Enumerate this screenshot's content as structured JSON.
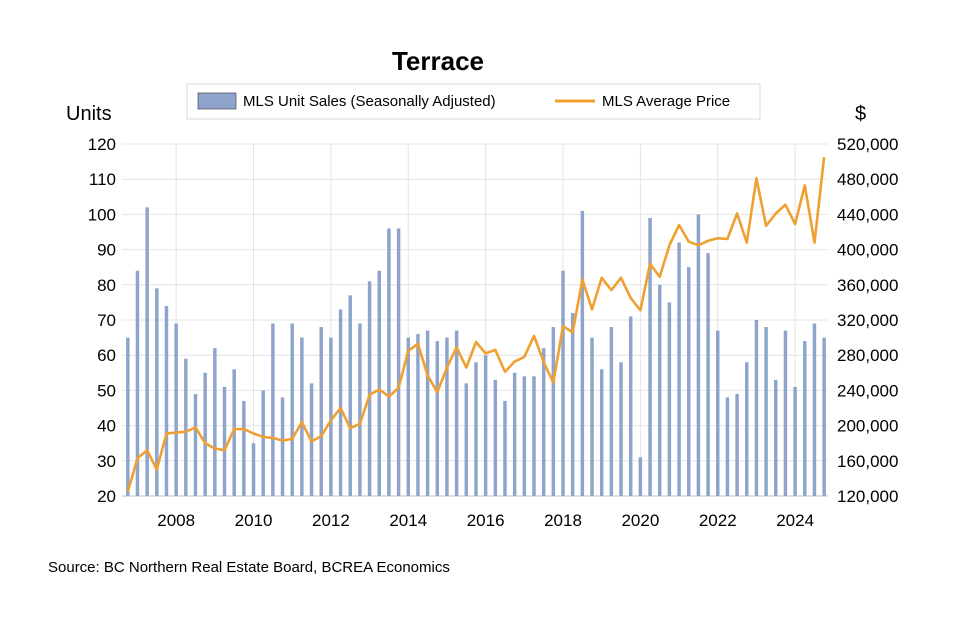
{
  "chart_data": {
    "type": "bar+line",
    "title": "Terrace",
    "left_axis_label": "Units",
    "right_axis_label": "$",
    "left_ylim": [
      20,
      120
    ],
    "left_ticks": [
      "20",
      "30",
      "40",
      "50",
      "60",
      "70",
      "80",
      "90",
      "100",
      "110",
      "120"
    ],
    "right_ylim": [
      120000,
      520000
    ],
    "right_ticks": [
      "120,000",
      "160,000",
      "200,000",
      "240,000",
      "280,000",
      "320,000",
      "360,000",
      "400,000",
      "440,000",
      "480,000",
      "520,000"
    ],
    "x_ticks": [
      "2008",
      "2010",
      "2012",
      "2014",
      "2016",
      "2018",
      "2020",
      "2022",
      "2024"
    ],
    "x_start": 2006.75,
    "x_step": 0.25,
    "x_range": [
      2006.6,
      2024.85
    ],
    "grid": true,
    "legend_position": "top",
    "series": [
      {
        "name": "MLS Unit Sales (Seasonally Adjusted)",
        "kind": "bar",
        "axis": "left",
        "color": "#8ea4cc",
        "values": [
          65,
          84,
          102,
          79,
          74,
          69,
          59,
          49,
          55,
          62,
          51,
          56,
          47,
          35,
          50,
          69,
          48,
          69,
          65,
          52,
          68,
          65,
          73,
          77,
          69,
          81,
          84,
          96,
          96,
          65,
          66,
          67,
          64,
          65,
          67,
          52,
          58,
          60,
          53,
          47,
          55,
          54,
          54,
          62,
          68,
          84,
          72,
          101,
          65,
          56,
          68,
          58,
          71,
          31,
          99,
          80,
          75,
          92,
          85,
          100,
          89,
          67,
          48,
          49,
          58,
          70,
          68,
          53,
          67,
          51,
          64,
          69,
          65
        ]
      },
      {
        "name": "MLS Average Price",
        "kind": "line",
        "axis": "right",
        "color": "#f0a030",
        "values": [
          125000,
          163000,
          172000,
          150000,
          191000,
          192000,
          193000,
          198000,
          180000,
          174000,
          172000,
          196000,
          196000,
          191000,
          187000,
          186000,
          183000,
          185000,
          204000,
          182000,
          188000,
          206000,
          220000,
          197000,
          202000,
          235000,
          241000,
          233000,
          243000,
          285000,
          293000,
          257000,
          238000,
          266000,
          289000,
          266000,
          295000,
          282000,
          286000,
          261000,
          273000,
          278000,
          302000,
          272000,
          249000,
          313000,
          306000,
          366000,
          332000,
          368000,
          354000,
          368000,
          345000,
          331000,
          384000,
          369000,
          405000,
          428000,
          409000,
          405000,
          410000,
          413000,
          412000,
          441000,
          408000,
          481000,
          427000,
          441000,
          451000,
          429000,
          473000,
          408000,
          505000
        ]
      }
    ]
  },
  "source": "Source:  BC Northern Real Estate Board, BCREA Economics"
}
